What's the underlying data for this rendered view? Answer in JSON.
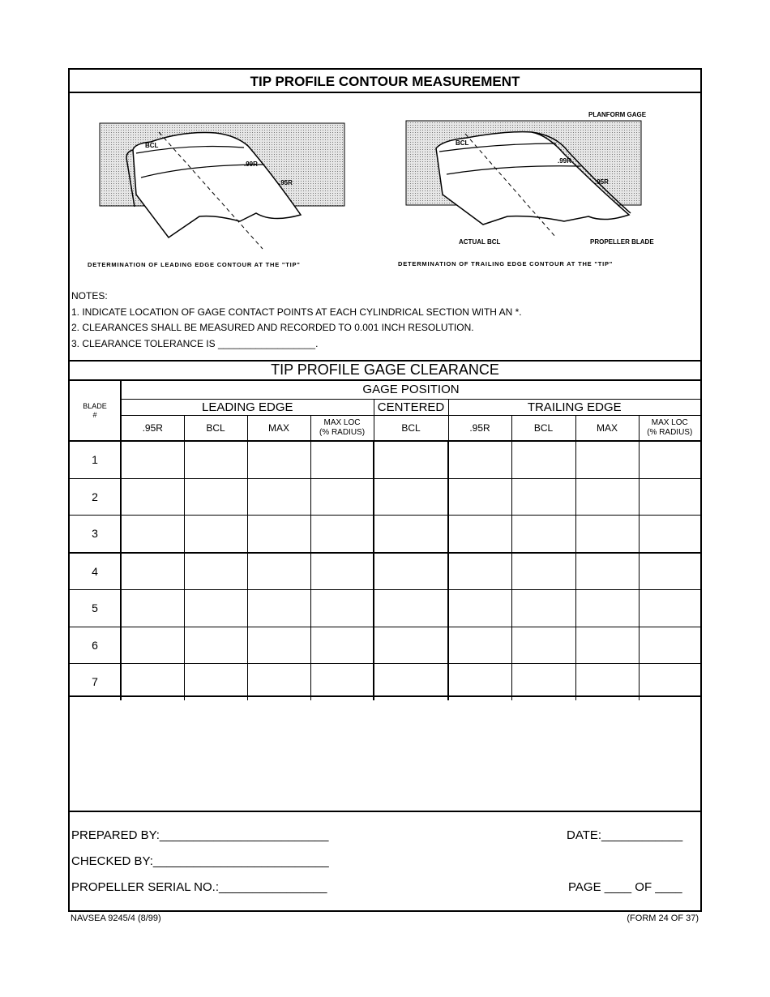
{
  "form_title": "TIP PROFILE CONTOUR MEASUREMENT",
  "illustrations": {
    "left": {
      "caption": "DETERMINATION OF LEADING EDGE CONTOUR AT THE \"TIP\"",
      "labels": [
        "BCL",
        ".99R",
        ".95R"
      ]
    },
    "right": {
      "caption": "DETERMINATION OF TRAILING EDGE CONTOUR AT THE \"TIP\"",
      "labels": [
        "PLANFORM GAGE",
        "BCL",
        ".99R",
        ".95R",
        "ACTUAL BCL",
        "PROPELLER BLADE"
      ]
    }
  },
  "notes": {
    "heading": "NOTES:",
    "items": [
      "1.  INDICATE LOCATION OF GAGE CONTACT POINTS AT EACH CYLINDRICAL SECTION WITH AN *.",
      "2.  CLEARANCES SHALL BE MEASURED AND RECORDED TO 0.001 INCH RESOLUTION.",
      "3.  CLEARANCE TOLERANCE IS __________________."
    ]
  },
  "table": {
    "title": "TIP PROFILE GAGE CLEARANCE",
    "blade_header": [
      "BLADE",
      "#"
    ],
    "gage_position": "GAGE POSITION",
    "groups": [
      "LEADING EDGE",
      "CENTERED",
      "TRAILING EDGE"
    ],
    "columns": [
      ".95R",
      "BCL",
      "MAX",
      [
        "MAX LOC",
        "(% RADIUS)"
      ],
      "BCL",
      ".95R",
      "BCL",
      "MAX",
      [
        "MAX LOC",
        "(% RADIUS)"
      ]
    ],
    "rows": [
      "1",
      "2",
      "3",
      "4",
      "5",
      "6",
      "7"
    ]
  },
  "signatures": {
    "prepared_by": "PREPARED BY:_________________________",
    "date": "DATE:____________",
    "checked_by": "CHECKED BY:__________________________",
    "serial": "PROPELLER SERIAL NO.:________________",
    "page": "PAGE ____ OF ____"
  },
  "footer": {
    "left": "NAVSEA 9245/4 (8/99)",
    "right": "(FORM 24 OF 37)"
  }
}
